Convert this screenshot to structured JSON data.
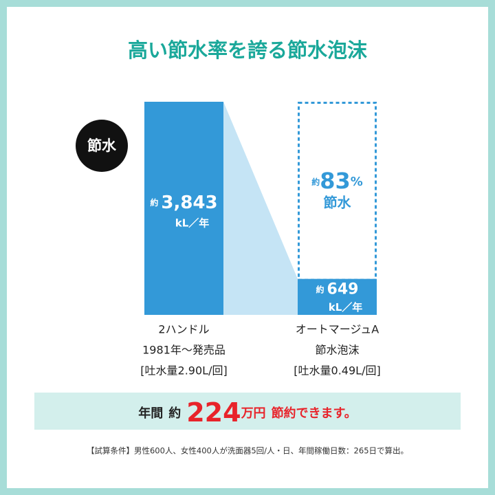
{
  "chart_data": {
    "type": "bar",
    "title": "高い節水率を誇る節水泡沫",
    "badge": "節水",
    "categories": [
      [
        "2ハンドル",
        "1981年～発売品",
        "[吐水量2.90L/回]"
      ],
      [
        "オートマージュA",
        "節水泡沫",
        "[吐水量0.49L/回]"
      ]
    ],
    "values": [
      3843,
      649
    ],
    "value_labels": [
      "3,843",
      "649"
    ],
    "value_prefix": "約",
    "unit": "kL／年",
    "colors": {
      "bar": "#3399d8",
      "connector": "#c5e4f5",
      "title": "#1aa89a",
      "accent": "#e8232a"
    },
    "savings": {
      "prefix": "約",
      "value": 83,
      "unit": "%",
      "label": "節水"
    },
    "banner": {
      "lead": "年間",
      "prefix": "約",
      "value": 224,
      "unit": "万円",
      "tail": "節約できます。"
    },
    "footnote": "【試算条件】男性600人、女性400人が洗面器5回/人・日、年間稼働日数：265日で算出。"
  }
}
